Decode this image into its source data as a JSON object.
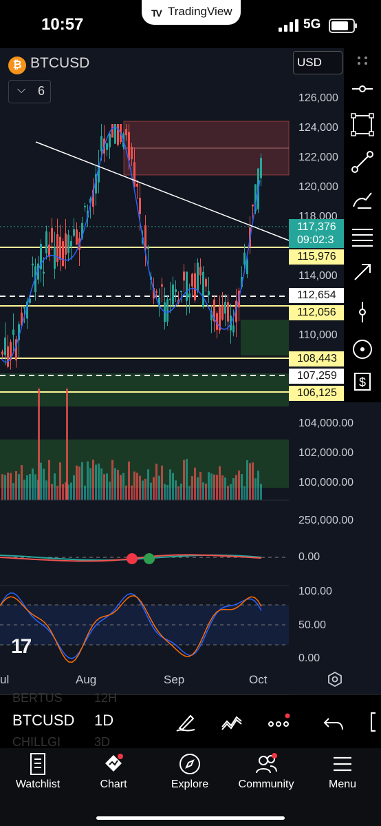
{
  "status_bar": {
    "time": "10:57",
    "app_banner": "TradingView",
    "network": "5G"
  },
  "chart_header": {
    "symbol_badge": "₿",
    "symbol": "BTCUSD",
    "indicator_count": "6",
    "currency": "USD"
  },
  "price_axis": [
    "126,000",
    "124,000",
    "122,000",
    "120,000",
    "118,000",
    "114,000",
    "110,000",
    "104,000.00",
    "102,000.00",
    "100,000.00"
  ],
  "price_tags": {
    "current_price": "117,376",
    "countdown": "09:02:3",
    "level_1": "115,976",
    "level_2": "112,654",
    "level_3": "112,056",
    "level_4": "108,443",
    "level_5": "107,259",
    "level_6": "106,125"
  },
  "volume_axis": "250,000.00",
  "macd_axis": "0.00",
  "stoch_axis": [
    "100.00",
    "50.00",
    "0.00"
  ],
  "time_axis": [
    "ul",
    "Aug",
    "Sep",
    "Oct"
  ],
  "symbol_bar": {
    "symbol": "BTCUSD",
    "timeframe": "1D",
    "ghost_above": "BERTUS",
    "ghost_above_tf": "12H",
    "ghost_below": "CHILLGI",
    "ghost_below_tf": "3D"
  },
  "tabs": [
    {
      "label": "Watchlist",
      "icon": "watchlist-icon"
    },
    {
      "label": "Chart",
      "icon": "chart-icon"
    },
    {
      "label": "Explore",
      "icon": "compass-icon"
    },
    {
      "label": "Community",
      "icon": "community-icon"
    },
    {
      "label": "Menu",
      "icon": "menu-icon"
    }
  ],
  "colors": {
    "bull": "#26a69a",
    "bear": "#ef5350",
    "support": "#fff799",
    "ma": "#2962ff",
    "background": "#121620"
  }
}
